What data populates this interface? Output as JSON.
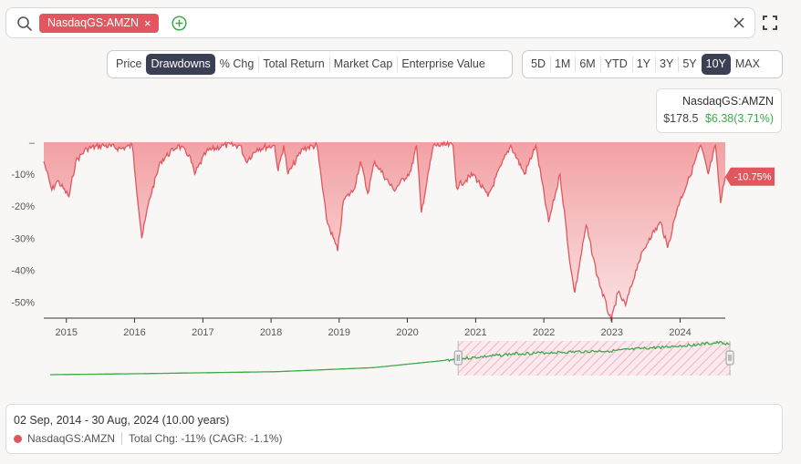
{
  "search": {
    "chip_label": "NasdaqGS:AMZN",
    "remove_symbol": "×"
  },
  "metric_tabs": [
    {
      "label": "Price",
      "active": false
    },
    {
      "label": "Drawdowns",
      "active": true
    },
    {
      "label": "% Chg",
      "active": false
    },
    {
      "label": "Total Return",
      "active": false
    },
    {
      "label": "Market Cap",
      "active": false
    },
    {
      "label": "Enterprise Value",
      "active": false
    }
  ],
  "range_tabs": [
    {
      "label": "5D",
      "active": false
    },
    {
      "label": "1M",
      "active": false
    },
    {
      "label": "6M",
      "active": false
    },
    {
      "label": "YTD",
      "active": false
    },
    {
      "label": "1Y",
      "active": false
    },
    {
      "label": "3Y",
      "active": false
    },
    {
      "label": "5Y",
      "active": false
    },
    {
      "label": "10Y",
      "active": true
    },
    {
      "label": "MAX",
      "active": false
    }
  ],
  "ticker": {
    "name": "NasdaqGS:AMZN",
    "price": "$178.5",
    "change": "$6.38(3.71%)"
  },
  "colors": {
    "accent": "#e2575f",
    "positive": "#3daa4a",
    "navigator_line": "#3daa4a"
  },
  "chart_data": {
    "type": "area",
    "series": [
      {
        "name": "NasdaqGS:AMZN",
        "x": [
          "2014-09-02",
          "2014-10-15",
          "2014-11-15",
          "2015-01-15",
          "2015-02-20",
          "2015-04-20",
          "2015-07-20",
          "2015-10-20",
          "2015-12-20",
          "2016-02-09",
          "2016-03-20",
          "2016-05-20",
          "2016-08-20",
          "2016-10-20",
          "2016-11-18",
          "2017-01-20",
          "2017-04-20",
          "2017-07-20",
          "2017-08-20",
          "2017-10-20",
          "2018-01-20",
          "2018-02-08",
          "2018-03-10",
          "2018-04-02",
          "2018-06-20",
          "2018-09-04",
          "2018-10-25",
          "2018-12-24",
          "2019-01-25",
          "2019-03-20",
          "2019-04-25",
          "2019-06-03",
          "2019-07-10",
          "2019-10-20",
          "2020-01-20",
          "2020-02-19",
          "2020-03-16",
          "2020-05-20",
          "2020-07-10",
          "2020-09-02",
          "2020-09-20",
          "2020-12-20",
          "2021-03-08",
          "2021-05-20",
          "2021-07-08",
          "2021-09-20",
          "2021-11-19",
          "2022-01-27",
          "2022-03-29",
          "2022-05-24",
          "2022-06-16",
          "2022-08-16",
          "2022-10-15",
          "2022-12-28",
          "2023-02-02",
          "2023-03-15",
          "2023-05-20",
          "2023-07-20",
          "2023-09-20",
          "2023-10-26",
          "2023-12-20",
          "2024-02-20",
          "2024-04-20",
          "2024-05-31",
          "2024-07-08",
          "2024-08-05",
          "2024-08-30"
        ],
        "values": [
          -6,
          -15,
          -12,
          -17,
          -6,
          -2,
          -1,
          -2,
          -1,
          -30,
          -18,
          -6,
          -1,
          -4,
          -10,
          -3,
          -1,
          -1,
          -6,
          -2,
          -1,
          -9,
          -1,
          -10,
          -2,
          -1,
          -24,
          -34,
          -18,
          -15,
          -6,
          -16,
          -6,
          -15,
          -9,
          -1,
          -22,
          -1,
          -1,
          -1,
          -14,
          -10,
          -17,
          -7,
          -1,
          -10,
          -1,
          -25,
          -10,
          -39,
          -47,
          -26,
          -42,
          -56,
          -47,
          -51,
          -38,
          -30,
          -25,
          -33,
          -20,
          -11,
          -1,
          -10,
          -1,
          -19,
          -10.75
        ]
      }
    ],
    "ylim": [
      -55,
      0
    ],
    "yticks": [
      0,
      -10,
      -20,
      -30,
      -40,
      -50
    ],
    "ytick_labels": [
      "–",
      "-10%",
      "-20%",
      "-30%",
      "-40%",
      "-50%"
    ],
    "xticks": [
      "2015",
      "2016",
      "2017",
      "2018",
      "2019",
      "2020",
      "2021",
      "2022",
      "2023",
      "2024"
    ],
    "last_value_label": "-10.75%",
    "legend": "none",
    "grid": false,
    "navigator": {
      "x": [
        "2014-09-02",
        "2016-01-01",
        "2018-01-01",
        "2019-06-01",
        "2020-07-01",
        "2021-07-08",
        "2022-06-16",
        "2022-12-28",
        "2023-07-20",
        "2024-07-08",
        "2024-08-30"
      ],
      "values": [
        16,
        18,
        22,
        30,
        45,
        58,
        62,
        64,
        70,
        80,
        77
      ],
      "selected_range": [
        "2020-09-01",
        "2024-08-30"
      ]
    }
  },
  "info": {
    "range_text": "02 Sep, 2014 - 30 Aug, 2024 (10.00 years)",
    "ticker": "NasdaqGS:AMZN",
    "total_chg": "Total Chg: -11% (CAGR: -1.1%)"
  }
}
